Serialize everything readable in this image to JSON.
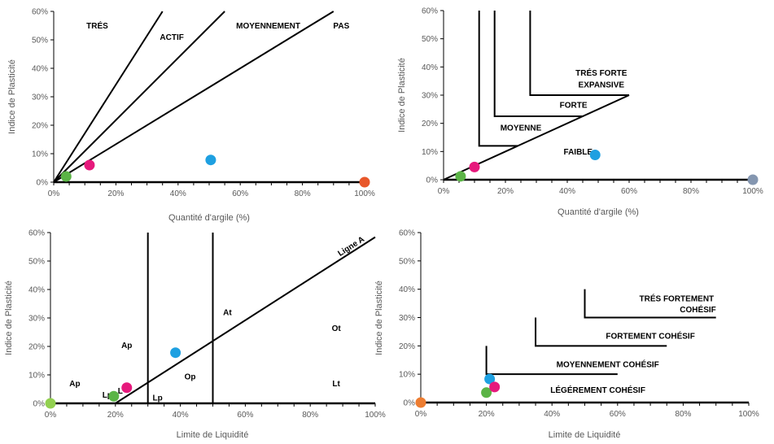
{
  "chart_data": [
    {
      "type": "scatter",
      "xlabel": "Quantité d'argile (%)",
      "ylabel": "Indice de Plasticité",
      "xlim": [
        0,
        100
      ],
      "ylim": [
        0,
        60
      ],
      "x_ticks": [
        "0%",
        "20%",
        "40%",
        "60%",
        "80%",
        "100%"
      ],
      "y_ticks": [
        "0%",
        "10%",
        "20%",
        "30%",
        "40%",
        "50%",
        "60%"
      ],
      "grid": false,
      "points": [
        {
          "x": 4,
          "y": 2,
          "color": "#5BB446"
        },
        {
          "x": 11.5,
          "y": 6,
          "color": "#E6197C"
        },
        {
          "x": 50.5,
          "y": 7.8,
          "color": "#1EA0E1"
        },
        {
          "x": 100,
          "y": 0,
          "color": "#E8572A"
        }
      ],
      "lines": [
        {
          "x": [
            0,
            35
          ],
          "y": [
            0,
            60
          ]
        },
        {
          "x": [
            0,
            55
          ],
          "y": [
            0,
            60
          ]
        },
        {
          "x": [
            0,
            90
          ],
          "y": [
            0,
            60
          ]
        }
      ],
      "zone_labels": [
        {
          "text": "TRÉS",
          "x": 14,
          "y": 55
        },
        {
          "text": "ACTIF",
          "x": 38,
          "y": 51
        },
        {
          "text": "MOYENNEMENT",
          "x": 69,
          "y": 55
        },
        {
          "text": "PAS",
          "x": 92.5,
          "y": 55
        }
      ]
    },
    {
      "type": "scatter",
      "xlabel": "Quantité d'argile (%)",
      "ylabel": "Indice de Plasticité",
      "xlim": [
        0,
        100
      ],
      "ylim": [
        0,
        60
      ],
      "x_ticks": [
        "0%",
        "20%",
        "40%",
        "60%",
        "80%",
        "100%"
      ],
      "y_ticks": [
        "0%",
        "10%",
        "20%",
        "30%",
        "40%",
        "50%",
        "60%"
      ],
      "grid": false,
      "points": [
        {
          "x": 5.5,
          "y": 1.2,
          "color": "#5BB446"
        },
        {
          "x": 10,
          "y": 4.5,
          "color": "#E6197C"
        },
        {
          "x": 49,
          "y": 8.8,
          "color": "#1EA0E1"
        },
        {
          "x": 100,
          "y": 0,
          "color": "#8496B0"
        }
      ],
      "lines": [
        {
          "x": [
            0,
            60
          ],
          "y": [
            0,
            30
          ]
        },
        {
          "x": [
            11.5,
            11.5,
            24
          ],
          "y": [
            60,
            12,
            12
          ]
        },
        {
          "x": [
            16.5,
            16.5,
            45
          ],
          "y": [
            60,
            22.5,
            22.5
          ]
        },
        {
          "x": [
            28,
            28,
            60
          ],
          "y": [
            60,
            30,
            30
          ]
        }
      ],
      "zone_labels": [
        {
          "text": "TRÉS FORTE",
          "x": 51,
          "y": 38
        },
        {
          "text": "EXPANSIVE",
          "x": 51,
          "y": 33.8
        },
        {
          "text": "FORTE",
          "x": 42,
          "y": 26.5
        },
        {
          "text": "MOYENNE",
          "x": 25,
          "y": 18.5
        },
        {
          "text": "FAIBLE",
          "x": 43.5,
          "y": 10
        }
      ]
    },
    {
      "type": "scatter",
      "xlabel": "Limite de Liquidité",
      "ylabel": "Indice de Plasticité",
      "xlim": [
        0,
        100
      ],
      "ylim": [
        0,
        60
      ],
      "x_ticks": [
        "0%",
        "20%",
        "40%",
        "60%",
        "80%",
        "100%"
      ],
      "y_ticks": [
        "0%",
        "10%",
        "20%",
        "30%",
        "40%",
        "50%",
        "60%"
      ],
      "grid": false,
      "points": [
        {
          "x": 0,
          "y": 0,
          "color": "#92D050"
        },
        {
          "x": 19.5,
          "y": 2.5,
          "color": "#5BB446"
        },
        {
          "x": 23.5,
          "y": 5.5,
          "color": "#E6197C"
        },
        {
          "x": 38.5,
          "y": 17.8,
          "color": "#1EA0E1"
        }
      ],
      "lines": [
        {
          "x": [
            20,
            100
          ],
          "y": [
            0,
            58.4
          ]
        },
        {
          "x": [
            30,
            30
          ],
          "y": [
            60,
            0
          ]
        },
        {
          "x": [
            50,
            50
          ],
          "y": [
            60,
            0
          ]
        }
      ],
      "line_label": "Ligne A",
      "zone_labels": [
        {
          "text": "Ap",
          "x": 23.5,
          "y": 20.5
        },
        {
          "text": "Ap",
          "x": 7.5,
          "y": 7
        },
        {
          "text": "Lp",
          "x": 17.5,
          "y": 3
        },
        {
          "text": "L",
          "x": 21.5,
          "y": 4.5
        },
        {
          "text": "Lp",
          "x": 33,
          "y": 2
        },
        {
          "text": "Op",
          "x": 43,
          "y": 9.5
        },
        {
          "text": "At",
          "x": 54.5,
          "y": 32
        },
        {
          "text": "Ot",
          "x": 88,
          "y": 26.5
        },
        {
          "text": "Lt",
          "x": 88,
          "y": 7
        }
      ]
    },
    {
      "type": "scatter",
      "xlabel": "Limite de Liquidité",
      "ylabel": "Indice de Plasticité",
      "xlim": [
        0,
        100
      ],
      "ylim": [
        0,
        60
      ],
      "x_ticks": [
        "0%",
        "20%",
        "40%",
        "60%",
        "80%",
        "100%"
      ],
      "y_ticks": [
        "0%",
        "10%",
        "20%",
        "30%",
        "40%",
        "50%",
        "60%"
      ],
      "grid": false,
      "points": [
        {
          "x": 0,
          "y": 0,
          "color": "#ED7D31"
        },
        {
          "x": 20,
          "y": 3.5,
          "color": "#5BB446"
        },
        {
          "x": 21,
          "y": 8.3,
          "color": "#1EA0E1"
        },
        {
          "x": 22.5,
          "y": 5.5,
          "color": "#E6197C"
        }
      ],
      "lines": [
        {
          "x": [
            20,
            20,
            60
          ],
          "y": [
            20,
            10,
            10
          ]
        },
        {
          "x": [
            35,
            35,
            75
          ],
          "y": [
            30,
            20,
            20
          ]
        },
        {
          "x": [
            50,
            50,
            90
          ],
          "y": [
            40,
            30,
            30
          ]
        }
      ],
      "zone_labels": [
        {
          "text": "TRÉS FORTEMENT",
          "x": 78,
          "y": 36.8
        },
        {
          "text": "COHÉSIF",
          "x": 84.5,
          "y": 32.8
        },
        {
          "text": "FORTEMENT COHÉSIF",
          "x": 70,
          "y": 23.5
        },
        {
          "text": "MOYENNEMENT COHÉSIF",
          "x": 57,
          "y": 13.5
        },
        {
          "text": "LÉGÉREMENT COHÉSIF",
          "x": 54,
          "y": 4.5
        }
      ]
    }
  ]
}
